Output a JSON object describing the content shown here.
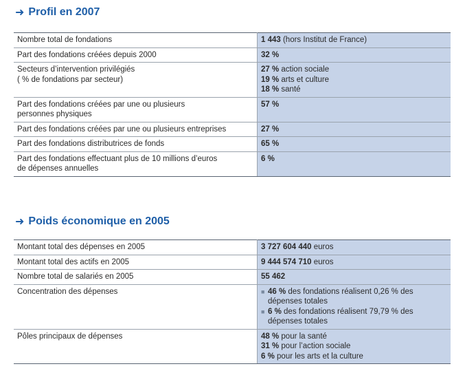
{
  "section1": {
    "title": "Profil en 2007",
    "rows": [
      {
        "label": [
          "Nombre total de fondations"
        ],
        "value": [
          {
            "num": "1 443",
            "text": " (hors Institut de France)"
          }
        ]
      },
      {
        "label": [
          "Part des fondations créées depuis 2000"
        ],
        "value": [
          {
            "num": "32 %",
            "text": ""
          }
        ]
      },
      {
        "label": [
          "Secteurs d’intervention privilégiés",
          "( % de fondations par secteur)"
        ],
        "value": [
          {
            "num": "27 %",
            "text": " action sociale"
          },
          {
            "num": "19 %",
            "text": " arts et culture"
          },
          {
            "num": "18 %",
            "text": " santé"
          }
        ]
      },
      {
        "label": [
          "Part des fondations créées par une ou plusieurs",
          "personnes physiques"
        ],
        "value": [
          {
            "num": "57 %",
            "text": ""
          }
        ]
      },
      {
        "label": [
          "Part des fondations créées par une ou plusieurs entreprises"
        ],
        "value": [
          {
            "num": "27 %",
            "text": ""
          }
        ]
      },
      {
        "label": [
          "Part des fondations distributrices de fonds"
        ],
        "value": [
          {
            "num": "65 %",
            "text": ""
          }
        ]
      },
      {
        "label": [
          "Part des fondations effectuant plus de 10 millions d’euros",
          "de dépenses annuelles"
        ],
        "value": [
          {
            "num": "6 %",
            "text": ""
          }
        ]
      }
    ]
  },
  "section2": {
    "title": "Poids économique en 2005",
    "rows": [
      {
        "label": [
          "Montant total des dépenses en 2005"
        ],
        "value": [
          {
            "num": "3 727 604 440",
            "text": " euros"
          }
        ]
      },
      {
        "label": [
          "Montant total des actifs en 2005"
        ],
        "value": [
          {
            "num": "9 444 574 710",
            "text": " euros"
          }
        ]
      },
      {
        "label": [
          "Nombre total de salariés en 2005"
        ],
        "value": [
          {
            "num": "55 462",
            "text": ""
          }
        ]
      },
      {
        "label": [
          "Concentration des dépenses"
        ],
        "bullets": [
          {
            "num": "46 %",
            "text": " des fondations réalisent 0,26 % des",
            "cont": "dépenses totales"
          },
          {
            "num": "6 %",
            "text": " des fondations réalisent 79,79 % des",
            "cont": "dépenses totales"
          }
        ]
      },
      {
        "label": [
          "Pôles principaux de dépenses"
        ],
        "value": [
          {
            "num": "48 %",
            "text": " pour la santé"
          },
          {
            "num": "31 %",
            "text": " pour l’action sociale"
          },
          {
            "num": "6 %",
            "text": " pour les arts et la culture"
          }
        ]
      }
    ]
  }
}
